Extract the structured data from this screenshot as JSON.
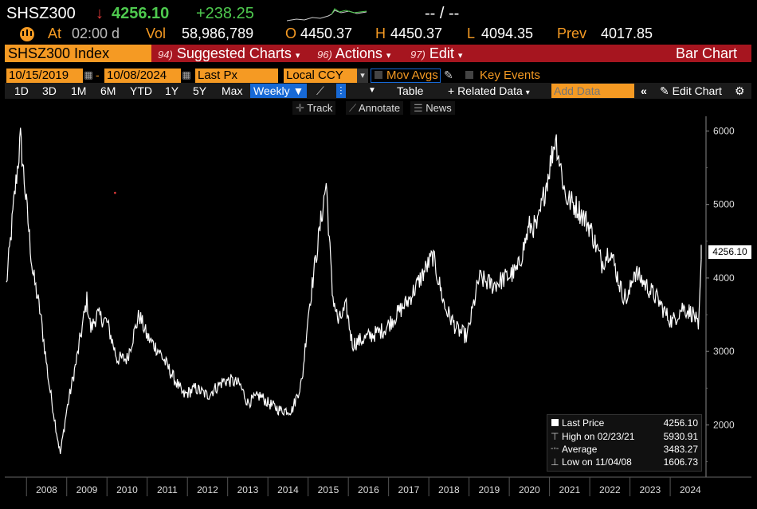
{
  "header": {
    "ticker": "SHSZ300",
    "arrow": "↓",
    "last": "4256.10",
    "change": "+238.25",
    "bid_ask": "-- / --",
    "at_label": "At",
    "time": "02:00 d",
    "vol_label": "Vol",
    "volume": "58,986,789",
    "open_label": "O",
    "open": "4450.37",
    "high_label": "H",
    "high": "4450.37",
    "low_label": "L",
    "low": "4094.35",
    "prev_label": "Prev",
    "prev": "4017.85"
  },
  "menu": {
    "security": "SHSZ300 Index",
    "suggested_num": "94)",
    "suggested": "Suggested Charts",
    "actions_num": "96)",
    "actions": "Actions",
    "edit_num": "97)",
    "edit": "Edit",
    "chart_kind": "Bar Chart"
  },
  "controls": {
    "start_date": "10/15/2019",
    "end_date": "10/08/2024",
    "price_field": "Last Px",
    "currency": "Local CCY",
    "mov_avgs": "Mov Avgs",
    "key_events": "Key Events",
    "ranges": [
      "1D",
      "3D",
      "1M",
      "6M",
      "YTD",
      "1Y",
      "5Y",
      "Max"
    ],
    "frequency": "Weekly",
    "table": "Table",
    "related_data": "+ Related Data",
    "add_data_placeholder": "Add Data",
    "edit_chart": "Edit Chart",
    "track": "Track",
    "annotate": "Annotate",
    "news": "News"
  },
  "colors": {
    "accent": "#f59a23",
    "menubar": "#a6151f",
    "up": "#4ec94e",
    "down": "#e23a3a",
    "selected": "#1769d6"
  },
  "chart_data": {
    "type": "line",
    "title": "",
    "xlabel": "",
    "ylabel": "",
    "ylim": [
      1300,
      6200
    ],
    "xlim": [
      2007.5,
      2024.85
    ],
    "yticks": [
      2000,
      3000,
      4000,
      5000,
      6000
    ],
    "xticks": [
      "2008",
      "2009",
      "2010",
      "2011",
      "2012",
      "2013",
      "2014",
      "2015",
      "2016",
      "2017",
      "2018",
      "2019",
      "2020",
      "2021",
      "2022",
      "2023",
      "2024"
    ],
    "grid": false,
    "series": [
      {
        "name": "Last Price",
        "x": [
          2007.5,
          2007.7,
          2007.85,
          2008.0,
          2008.15,
          2008.35,
          2008.55,
          2008.75,
          2008.84,
          2009.0,
          2009.25,
          2009.5,
          2009.6,
          2009.75,
          2010.0,
          2010.25,
          2010.5,
          2010.8,
          2011.0,
          2011.3,
          2011.6,
          2011.9,
          2012.2,
          2012.5,
          2012.9,
          2013.1,
          2013.3,
          2013.5,
          2013.8,
          2014.0,
          2014.3,
          2014.6,
          2014.85,
          2015.0,
          2015.2,
          2015.45,
          2015.6,
          2015.75,
          2015.95,
          2016.1,
          2016.5,
          2016.9,
          2017.2,
          2017.5,
          2017.9,
          2018.1,
          2018.4,
          2018.7,
          2018.95,
          2019.25,
          2019.6,
          2019.9,
          2020.2,
          2020.5,
          2020.7,
          2021.0,
          2021.15,
          2021.4,
          2021.7,
          2022.0,
          2022.3,
          2022.5,
          2022.8,
          2022.95,
          2023.1,
          2023.4,
          2023.7,
          2023.9,
          2024.05,
          2024.3,
          2024.6,
          2024.7,
          2024.77
        ],
        "y": [
          3900,
          5100,
          5891,
          5000,
          4100,
          3500,
          2600,
          1900,
          1607,
          2200,
          2900,
          3700,
          3300,
          3500,
          3400,
          2900,
          2900,
          3500,
          3200,
          3000,
          2700,
          2400,
          2500,
          2400,
          2600,
          2600,
          2550,
          2300,
          2400,
          2300,
          2200,
          2200,
          2600,
          3500,
          4300,
          5300,
          3800,
          3400,
          3600,
          3100,
          3200,
          3300,
          3500,
          3700,
          4100,
          4300,
          3600,
          3300,
          3200,
          4000,
          3900,
          4000,
          4100,
          4700,
          4700,
          5500,
          5931,
          5100,
          4950,
          4700,
          4200,
          4400,
          3800,
          3700,
          4100,
          3900,
          3700,
          3500,
          3400,
          3600,
          3500,
          3300,
          4256
        ]
      }
    ],
    "legend": [
      {
        "label": "Last Price",
        "value": "4256.10"
      },
      {
        "label": "High on 02/23/21",
        "value": "5930.91"
      },
      {
        "label": "Average",
        "value": "3483.27"
      },
      {
        "label": "Low on 11/04/08",
        "value": "1606.73"
      }
    ],
    "last_value_label": "4256.10",
    "annotations": [
      "•"
    ]
  }
}
